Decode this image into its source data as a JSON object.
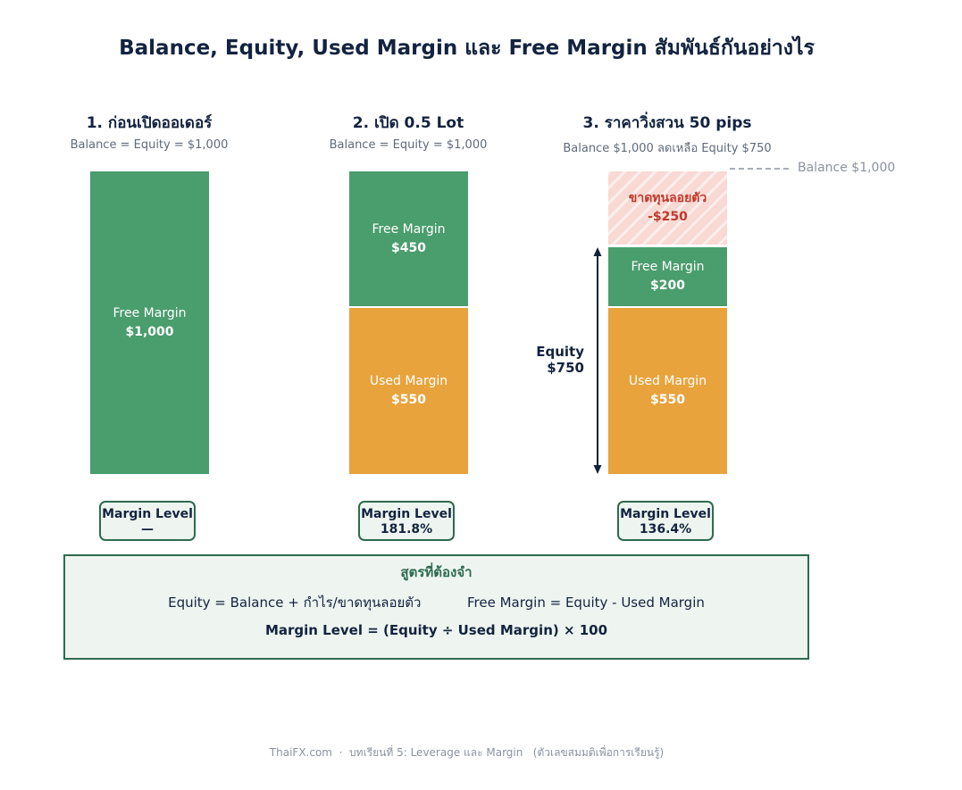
{
  "title": "Balance, Equity, Used Margin และ Free Margin สัมพันธ์กันอย่างไร",
  "columns": [
    {
      "title": "1. ก่อนเปิดออเดอร์",
      "subtitle": "Balance = Equity = $1,000",
      "segments": {
        "free_label": "Free Margin",
        "free_value": "$1,000"
      },
      "margin_level": {
        "label": "Margin Level",
        "value": "—"
      }
    },
    {
      "title": "2. เปิด 0.5 Lot",
      "subtitle": "Balance = Equity = $1,000",
      "segments": {
        "free_label": "Free Margin",
        "free_value": "$450",
        "used_label": "Used Margin",
        "used_value": "$550"
      },
      "margin_level": {
        "label": "Margin Level",
        "value": "181.8%"
      }
    },
    {
      "title": "3. ราคาวิ่งสวน 50 pips",
      "subtitle": "Balance $1,000  ลดเหลือ Equity $750",
      "segments": {
        "loss_label": "ขาดทุนลอยตัว",
        "loss_value": "-$250",
        "free_label": "Free Margin",
        "free_value": "$200",
        "used_label": "Used Margin",
        "used_value": "$550"
      },
      "margin_level": {
        "label": "Margin Level",
        "value": "136.4%"
      },
      "equity_label": "Equity",
      "equity_value": "$750",
      "balance_marker": "Balance $1,000"
    }
  ],
  "formula": {
    "title": "สูตรที่ต้องจำ",
    "line1a": "Equity = Balance + กำไร/ขาดทุนลอยตัว",
    "line1b": "Free Margin = Equity - Used Margin",
    "line2": "Margin Level = (Equity ÷ Used Margin) × 100"
  },
  "footer": "ThaiFX.com  ·  บทเรียนที่ 5: Leverage และ Margin   (ตัวเลขสมมติเพื่อการเรียนรู้)",
  "colors": {
    "free_margin": "#4a9d6d",
    "used_margin": "#e8a33c",
    "floating_loss": "#f8d9d4",
    "accent_dark": "#2e6b4f",
    "text_dark": "#13233f"
  }
}
